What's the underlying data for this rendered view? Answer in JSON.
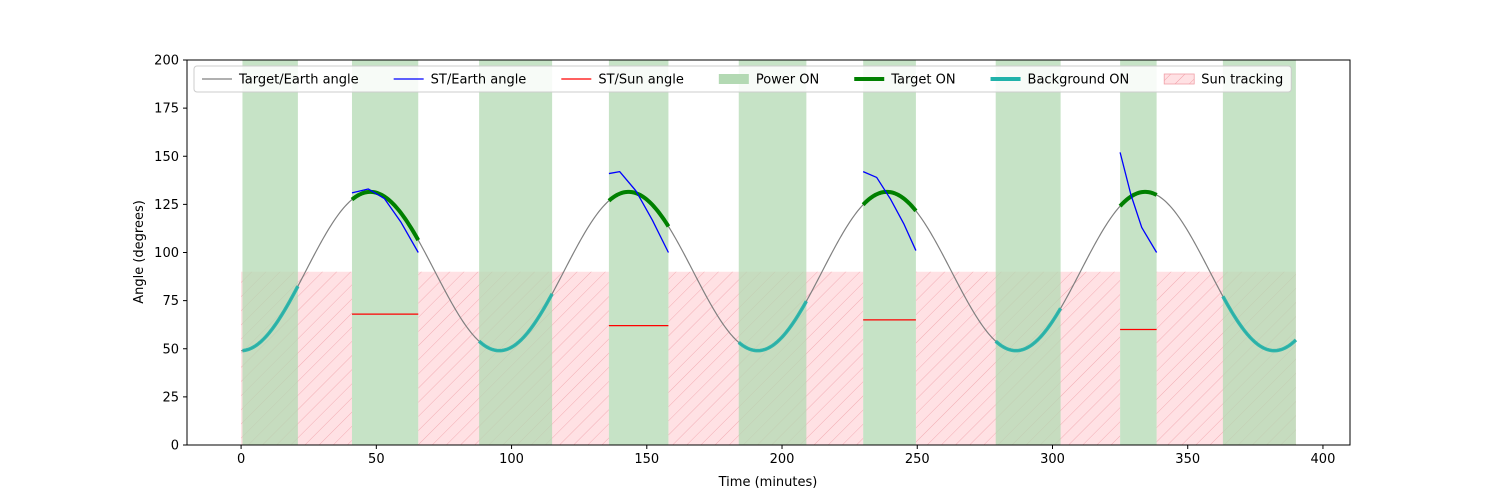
{
  "chart_data": {
    "type": "line",
    "xlabel": "Time (minutes)",
    "ylabel": "Angle (degrees)",
    "xlim": [
      -20,
      410
    ],
    "ylim": [
      0,
      200
    ],
    "xticks": [
      0,
      50,
      100,
      150,
      200,
      250,
      300,
      350,
      400
    ],
    "yticks": [
      0,
      25,
      50,
      75,
      100,
      125,
      150,
      175,
      200
    ],
    "grid": false,
    "legend_position": "top",
    "colors": {
      "target_earth": "#808080",
      "st_earth": "#0000ff",
      "st_sun": "#ff0000",
      "power_on": "#b3d9b3",
      "target_on": "#008000",
      "background_on": "#20b2aa",
      "sun_tracking_fill": "#ffe1e4",
      "sun_tracking_hatch": "#f0a0a8"
    },
    "legend": [
      {
        "label": "Target/Earth angle",
        "kind": "line",
        "key": "target_earth"
      },
      {
        "label": "ST/Earth angle",
        "kind": "line",
        "key": "st_earth"
      },
      {
        "label": "ST/Sun angle",
        "kind": "line",
        "key": "st_sun"
      },
      {
        "label": "Power ON",
        "kind": "patch",
        "key": "power_on"
      },
      {
        "label": "Target ON",
        "kind": "thickline",
        "key": "target_on"
      },
      {
        "label": "Background ON",
        "kind": "thickline",
        "key": "background_on"
      },
      {
        "label": "Sun tracking",
        "kind": "hatch",
        "key": "sun_tracking_fill"
      }
    ],
    "target_earth_curve": {
      "min": 49,
      "max": 131.5,
      "period_minutes": 95.5,
      "min_at": [
        0,
        95.5,
        191,
        286.5,
        382
      ],
      "x_range": [
        0,
        390
      ]
    },
    "power_on_intervals": [
      [
        0.5,
        21
      ],
      [
        41,
        65.5
      ],
      [
        88,
        115
      ],
      [
        136,
        158
      ],
      [
        184,
        209
      ],
      [
        230,
        249.5
      ],
      [
        279,
        303
      ],
      [
        325,
        338.5
      ],
      [
        363,
        390
      ]
    ],
    "sun_tracking_intervals": [
      [
        0,
        41
      ],
      [
        65.5,
        136
      ],
      [
        158,
        230
      ],
      [
        249.5,
        325
      ],
      [
        338.5,
        390
      ]
    ],
    "sun_tracking_level": 90,
    "target_on_intervals": [
      [
        41,
        65.5
      ],
      [
        136,
        158
      ],
      [
        230,
        249.5
      ],
      [
        325,
        338.5
      ]
    ],
    "background_on_intervals": [
      [
        0.5,
        21
      ],
      [
        88,
        115
      ],
      [
        184,
        209
      ],
      [
        279,
        303
      ],
      [
        363,
        390
      ]
    ],
    "st_earth_segments": [
      {
        "x": [
          41,
          47,
          53,
          59,
          65.5
        ],
        "y": [
          131,
          133,
          128,
          116,
          100
        ]
      },
      {
        "x": [
          136,
          140,
          146,
          152,
          158
        ],
        "y": [
          141,
          142,
          132,
          117,
          100
        ]
      },
      {
        "x": [
          230,
          235,
          240,
          245,
          249.5
        ],
        "y": [
          142,
          139,
          128,
          115,
          101
        ]
      },
      {
        "x": [
          325,
          329,
          333,
          338.5
        ],
        "y": [
          152,
          130,
          113,
          100
        ]
      }
    ],
    "st_sun_segments": [
      {
        "x": [
          41,
          65.5
        ],
        "y": [
          68,
          68
        ]
      },
      {
        "x": [
          136,
          158
        ],
        "y": [
          62,
          62
        ]
      },
      {
        "x": [
          230,
          249.5
        ],
        "y": [
          65,
          65
        ]
      },
      {
        "x": [
          325,
          338.5
        ],
        "y": [
          60,
          60
        ]
      }
    ]
  }
}
